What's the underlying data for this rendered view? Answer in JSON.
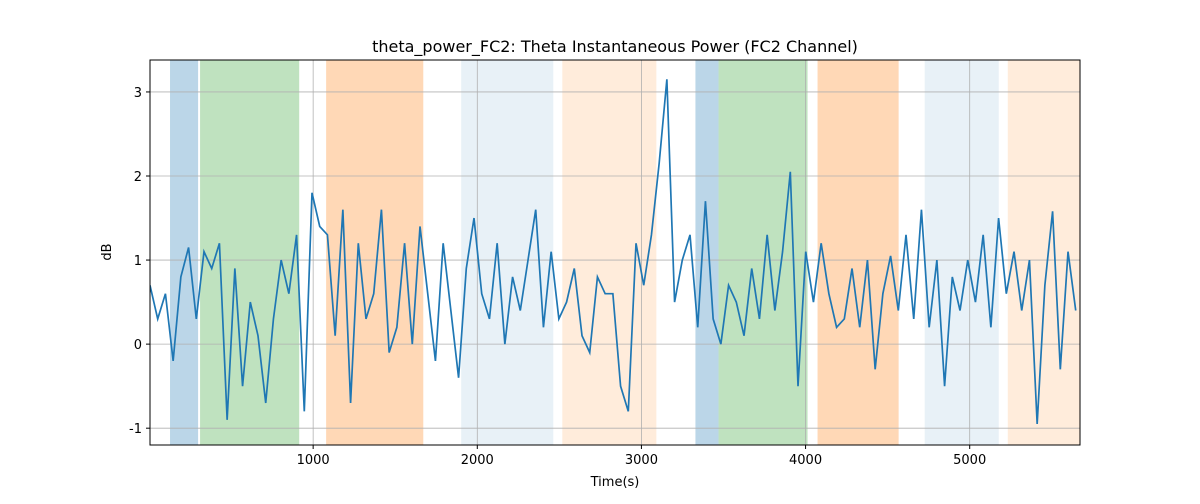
{
  "chart_data": {
    "type": "line",
    "title": "theta_power_FC2: Theta Instantaneous Power (FC2 Channel)",
    "xlabel": "Time(s)",
    "ylabel": "dB",
    "xlim": [
      6,
      5672
    ],
    "ylim": [
      -1.2,
      3.38
    ],
    "xticks": [
      1000,
      2000,
      3000,
      4000,
      5000
    ],
    "yticks": [
      -1,
      0,
      1,
      2,
      3
    ],
    "grid": true,
    "spans": [
      {
        "start": 128,
        "end": 299,
        "color": "#1f77b4",
        "alpha": 0.3
      },
      {
        "start": 311,
        "end": 915,
        "color": "#2ca02c",
        "alpha": 0.3
      },
      {
        "start": 1079,
        "end": 1671,
        "color": "#ff7f0e",
        "alpha": 0.3
      },
      {
        "start": 1902,
        "end": 2463,
        "color": "#1f77b4",
        "alpha": 0.1
      },
      {
        "start": 2518,
        "end": 3091,
        "color": "#ff7f0e",
        "alpha": 0.15
      },
      {
        "start": 3329,
        "end": 3470,
        "color": "#1f77b4",
        "alpha": 0.3
      },
      {
        "start": 3470,
        "end": 4012,
        "color": "#2ca02c",
        "alpha": 0.3
      },
      {
        "start": 4073,
        "end": 4567,
        "color": "#ff7f0e",
        "alpha": 0.3
      },
      {
        "start": 4726,
        "end": 5177,
        "color": "#1f77b4",
        "alpha": 0.1
      },
      {
        "start": 5232,
        "end": 5677,
        "color": "#ff7f0e",
        "alpha": 0.15
      }
    ],
    "x": [
      6,
      53,
      100,
      147,
      194,
      241,
      288,
      335,
      382,
      429,
      476,
      523,
      570,
      617,
      664,
      711,
      758,
      805,
      852,
      899,
      946,
      993,
      1040,
      1087,
      1134,
      1181,
      1228,
      1275,
      1322,
      1369,
      1416,
      1463,
      1510,
      1557,
      1604,
      1651,
      1698,
      1745,
      1792,
      1839,
      1886,
      1933,
      1980,
      2027,
      2074,
      2121,
      2168,
      2215,
      2262,
      2309,
      2356,
      2403,
      2450,
      2497,
      2544,
      2591,
      2638,
      2685,
      2732,
      2779,
      2826,
      2873,
      2920,
      2967,
      3014,
      3061,
      3108,
      3155,
      3202,
      3249,
      3296,
      3343,
      3390,
      3437,
      3484,
      3531,
      3578,
      3625,
      3672,
      3719,
      3766,
      3813,
      3860,
      3907,
      3954,
      4001,
      4048,
      4095,
      4142,
      4189,
      4236,
      4283,
      4330,
      4377,
      4424,
      4471,
      4518,
      4565,
      4612,
      4659,
      4706,
      4753,
      4800,
      4847,
      4894,
      4941,
      4988,
      5035,
      5082,
      5129,
      5176,
      5223,
      5270,
      5317,
      5364,
      5411,
      5458,
      5505,
      5552,
      5599,
      5646
    ],
    "series": [
      {
        "name": "theta_power_FC2",
        "color": "#1f77b4",
        "values": [
          0.7,
          0.3,
          0.6,
          -0.2,
          0.8,
          1.15,
          0.3,
          1.1,
          0.9,
          1.2,
          -0.9,
          0.9,
          -0.5,
          0.5,
          0.1,
          -0.7,
          0.3,
          1.0,
          0.6,
          1.3,
          -0.8,
          1.8,
          1.4,
          1.3,
          0.1,
          1.6,
          -0.7,
          1.2,
          0.3,
          0.6,
          1.6,
          -0.1,
          0.2,
          1.2,
          0.0,
          1.4,
          0.6,
          -0.2,
          1.2,
          0.4,
          -0.4,
          0.9,
          1.5,
          0.6,
          0.3,
          1.2,
          0.0,
          0.8,
          0.4,
          1.0,
          1.6,
          0.2,
          1.1,
          0.3,
          0.5,
          0.9,
          0.1,
          -0.1,
          0.8,
          0.6,
          0.6,
          -0.5,
          -0.8,
          1.2,
          0.7,
          1.3,
          2.15,
          3.15,
          0.5,
          1.0,
          1.3,
          0.2,
          1.7,
          0.3,
          0.0,
          0.7,
          0.5,
          0.1,
          0.9,
          0.3,
          1.3,
          0.4,
          1.1,
          2.05,
          -0.5,
          1.1,
          0.5,
          1.2,
          0.6,
          0.2,
          0.3,
          0.9,
          0.2,
          1.0,
          -0.3,
          0.6,
          1.05,
          0.4,
          1.3,
          0.3,
          1.6,
          0.2,
          1.0,
          -0.5,
          0.8,
          0.4,
          1.0,
          0.5,
          1.3,
          0.2,
          1.5,
          0.6,
          1.1,
          0.4,
          1.0,
          -0.95,
          0.7,
          1.58,
          -0.3,
          1.1,
          0.4
        ]
      }
    ]
  }
}
